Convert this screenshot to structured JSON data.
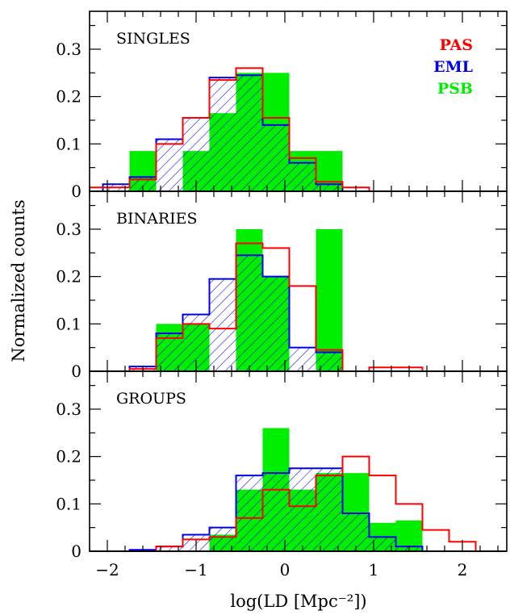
{
  "chart_data": {
    "type": "histogram",
    "xlabel": "log(LD [Mpc⁻²])",
    "ylabel": "Normalized counts",
    "xlim": [
      -2.2,
      2.5
    ],
    "ylim": [
      0,
      0.38
    ],
    "x_ticks": [
      "-2",
      "-1",
      "0",
      "1",
      "2"
    ],
    "x_tick_values": [
      -2,
      -1,
      0,
      1,
      2
    ],
    "y_ticks": [
      "0",
      "0.1",
      "0.2",
      "0.3"
    ],
    "y_tick_values": [
      0,
      0.1,
      0.2,
      0.3
    ],
    "bin_edges": [
      -2.35,
      -2.05,
      -1.75,
      -1.45,
      -1.15,
      -0.85,
      -0.55,
      -0.25,
      0.05,
      0.35,
      0.65,
      0.95,
      1.25,
      1.55,
      1.85,
      2.15
    ],
    "legend": [
      {
        "name": "PAS",
        "color": "#ff0000",
        "style": "red outline"
      },
      {
        "name": "EML",
        "color": "#0000ee",
        "style": "blue outline with diagonal hatching"
      },
      {
        "name": "PSB",
        "color": "#00ee00",
        "style": "green filled"
      }
    ],
    "panels": [
      {
        "title": "SINGLES",
        "series": [
          {
            "name": "PSB",
            "values": [
              0,
              0,
              0.085,
              0,
              0.085,
              0.165,
              0.25,
              0.25,
              0.085,
              0.085,
              0,
              0,
              0,
              0,
              0
            ]
          },
          {
            "name": "EML",
            "values": [
              0,
              0.015,
              0.03,
              0.11,
              0.155,
              0.24,
              0.245,
              0.14,
              0.06,
              0.015,
              0,
              0,
              0,
              0,
              0
            ]
          },
          {
            "name": "PAS",
            "values": [
              0.008,
              0.008,
              0.025,
              0.1,
              0.155,
              0.235,
              0.26,
              0.155,
              0.07,
              0.02,
              0.008,
              0,
              0,
              0,
              0
            ]
          }
        ]
      },
      {
        "title": "BINARIES",
        "series": [
          {
            "name": "PSB",
            "values": [
              0,
              0,
              0,
              0.1,
              0.1,
              0,
              0.3,
              0.2,
              0,
              0.3,
              0,
              0,
              0,
              0,
              0
            ]
          },
          {
            "name": "EML",
            "values": [
              0,
              0,
              0.01,
              0.08,
              0.12,
              0.195,
              0.245,
              0.2,
              0.05,
              0.04,
              0,
              0,
              0,
              0,
              0
            ]
          },
          {
            "name": "PAS",
            "values": [
              0,
              0,
              0.005,
              0.07,
              0.1,
              0.09,
              0.27,
              0.26,
              0.18,
              0.045,
              0,
              0.008,
              0.008,
              0,
              0
            ]
          }
        ]
      },
      {
        "title": "GROUPS",
        "series": [
          {
            "name": "PSB",
            "values": [
              0,
              0,
              0,
              0,
              0,
              0.035,
              0.13,
              0.26,
              0.13,
              0.165,
              0.165,
              0.06,
              0.065,
              0,
              0
            ]
          },
          {
            "name": "EML",
            "values": [
              0,
              0,
              0.003,
              0.01,
              0.035,
              0.05,
              0.16,
              0.165,
              0.175,
              0.175,
              0.08,
              0.03,
              0.01,
              0,
              0
            ]
          },
          {
            "name": "PAS",
            "values": [
              0,
              0,
              0,
              0.01,
              0.025,
              0.03,
              0.07,
              0.13,
              0.095,
              0.16,
              0.2,
              0.16,
              0.1,
              0.045,
              0.02
            ]
          }
        ]
      }
    ]
  }
}
